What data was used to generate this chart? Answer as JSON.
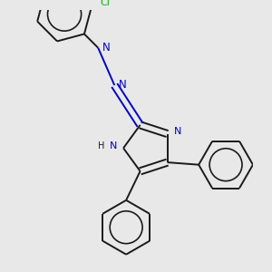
{
  "bg_color": "#e8e8e8",
  "bond_color": "#1a1a1a",
  "nitrogen_color": "#0000cc",
  "chlorine_color": "#00bb00",
  "lw": 1.4,
  "figsize": [
    3.0,
    3.0
  ],
  "dpi": 100,
  "xlim": [
    -2.5,
    2.5
  ],
  "ylim": [
    -2.8,
    2.8
  ]
}
